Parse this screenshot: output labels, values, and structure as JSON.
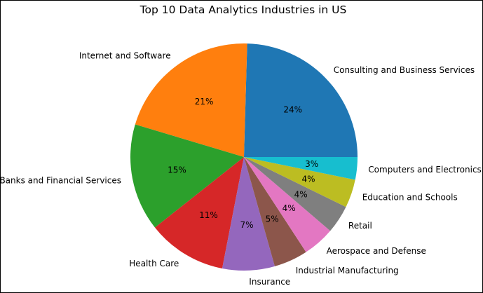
{
  "chart_data": {
    "type": "pie",
    "title": "Top 10 Data Analytics Industries in US",
    "categories": [
      "Consulting and Business Services",
      "Internet and Software",
      "Banks and Financial Services",
      "Health Care",
      "Insurance",
      "Industrial Manufacturing",
      "Aerospace and Defense",
      "Retail",
      "Education and Schools",
      "Computers and Electronics"
    ],
    "values": [
      24.4,
      20.7,
      15.2,
      11.2,
      7.4,
      4.8,
      4.5,
      4.0,
      4.0,
      3.2
    ],
    "percent_labels": [
      "24%",
      "21%",
      "15%",
      "11%",
      "7%",
      "5%",
      "4%",
      "4%",
      "4%",
      "3%"
    ],
    "colors": [
      "#1f77b4",
      "#ff7f0e",
      "#2ca02c",
      "#d62728",
      "#9467bd",
      "#8c564b",
      "#e377c2",
      "#7f7f7f",
      "#bcbd22",
      "#17becf"
    ],
    "start_angle_deg": 0,
    "direction": "counterclockwise",
    "legend": "none"
  }
}
